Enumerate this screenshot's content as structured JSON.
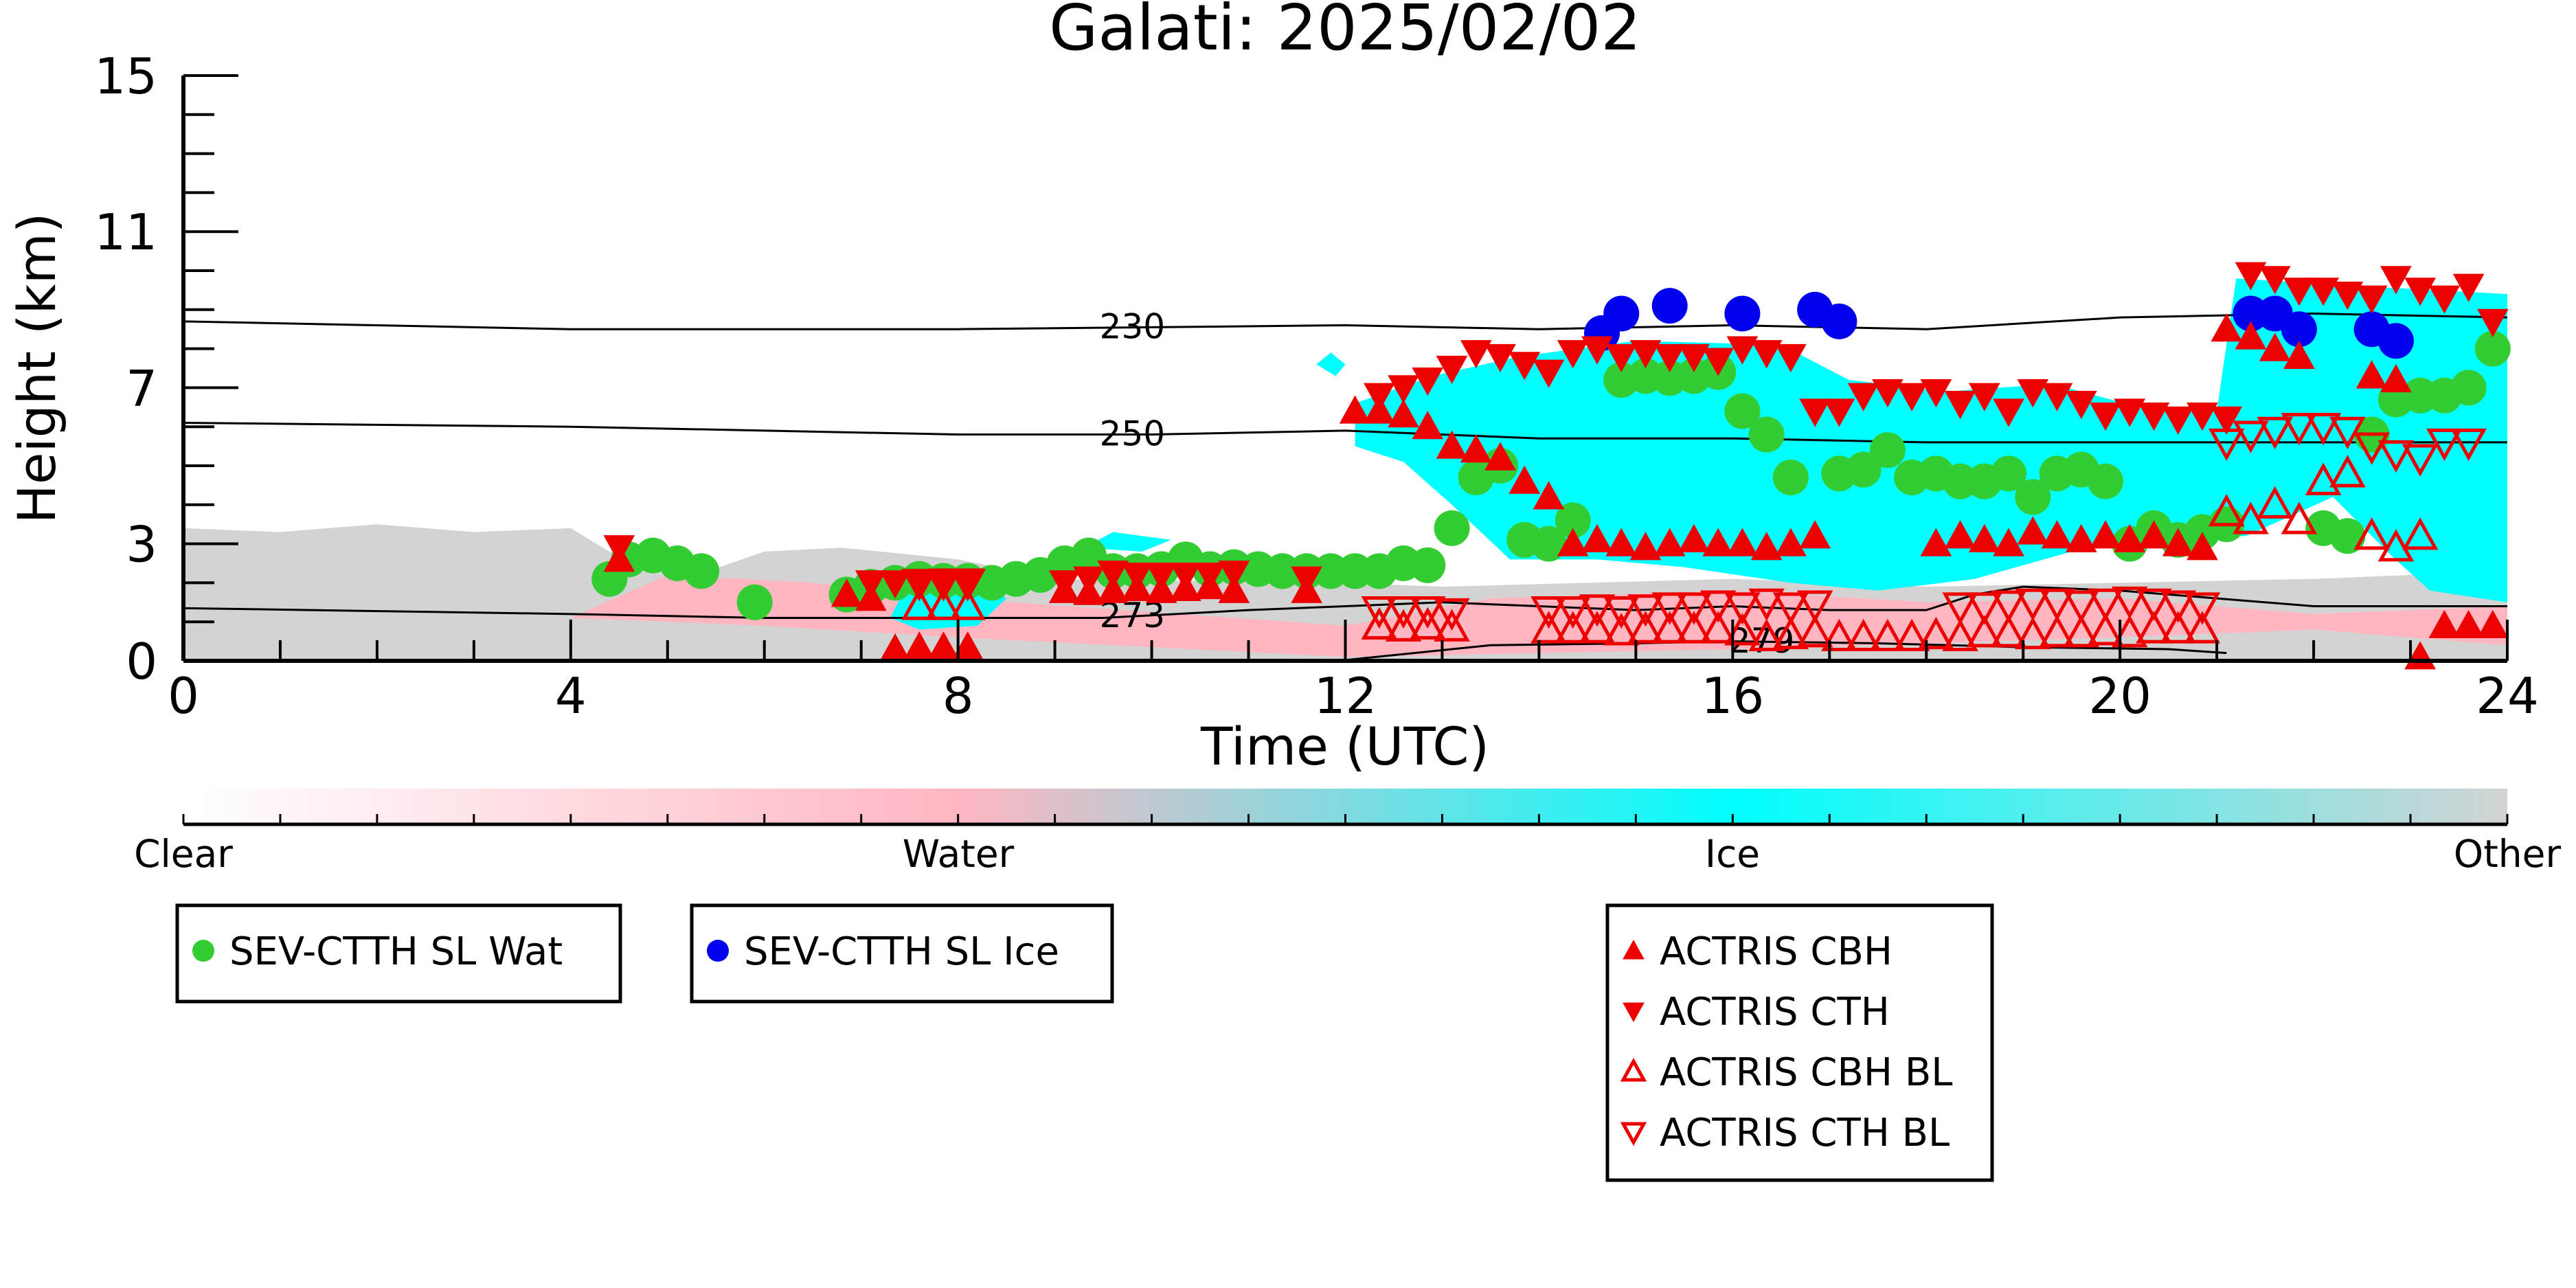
{
  "chart_data": {
    "type": "scatter",
    "title": "Galati: 2025/02/02",
    "xlabel": "Time (UTC)",
    "ylabel": "Height (km)",
    "xlim": [
      0,
      24
    ],
    "ylim": [
      0,
      15
    ],
    "xticks": [
      "0",
      "4",
      "8",
      "12",
      "16",
      "20",
      "24"
    ],
    "yticks": [
      "0",
      "3",
      "7",
      "11",
      "15"
    ],
    "grid": false,
    "colorbar": {
      "labels": [
        "Clear",
        "Water",
        "Ice",
        "Other"
      ],
      "colors": [
        "#ffffff",
        "#ffb6c1",
        "#00ffff",
        "#d3d3d3"
      ]
    },
    "contours": [
      {
        "label": "230",
        "color": "#000000",
        "x": [
          0,
          4,
          8,
          12,
          14,
          16,
          18,
          20,
          22,
          24
        ],
        "y": [
          8.7,
          8.5,
          8.5,
          8.6,
          8.5,
          8.6,
          8.5,
          8.8,
          8.9,
          8.8
        ]
      },
      {
        "label": "250",
        "color": "#000000",
        "x": [
          0,
          4,
          8,
          10,
          12,
          14,
          16,
          18,
          20,
          22,
          24
        ],
        "y": [
          6.1,
          6.0,
          5.8,
          5.8,
          5.9,
          5.7,
          5.7,
          5.6,
          5.6,
          5.6,
          5.6
        ]
      },
      {
        "label": "273",
        "color": "#000000",
        "x": [
          0,
          4,
          6,
          8,
          9.5,
          11,
          12,
          13,
          14,
          15,
          16,
          17,
          18,
          18.5,
          19,
          20,
          21,
          22,
          24
        ],
        "y": [
          1.35,
          1.2,
          1.1,
          1.1,
          1.1,
          1.3,
          1.4,
          1.5,
          1.4,
          1.3,
          1.4,
          1.3,
          1.3,
          1.7,
          1.9,
          1.8,
          1.6,
          1.4,
          1.4
        ]
      },
      {
        "label": "279",
        "color": "#000000",
        "x": [
          12,
          13.5,
          15,
          16,
          17.5,
          19,
          20.5,
          21.1
        ],
        "y": [
          0.02,
          0.4,
          0.45,
          0.5,
          0.45,
          0.35,
          0.3,
          0.2
        ]
      }
    ],
    "series": [
      {
        "name": "SEV-CTTH SL Wat",
        "marker": "circle",
        "color": "#33cc33",
        "x": [
          4.4,
          4.6,
          4.85,
          5.1,
          5.35,
          5.9,
          6.85,
          7.1,
          7.35,
          7.6,
          7.85,
          8.1,
          8.35,
          8.6,
          8.85,
          9.1,
          9.35,
          9.6,
          9.85,
          10.1,
          10.35,
          10.6,
          10.85,
          11.1,
          11.35,
          11.6,
          11.85,
          12.1,
          12.35,
          12.6,
          12.85,
          13.1,
          13.35,
          13.6,
          13.85,
          14.1,
          14.35,
          14.85,
          15.1,
          15.35,
          15.6,
          15.85,
          16.1,
          16.35,
          16.6,
          17.1,
          17.35,
          17.6,
          17.85,
          18.1,
          18.35,
          18.6,
          18.85,
          19.1,
          19.35,
          19.6,
          19.85,
          20.1,
          20.35,
          20.6,
          20.85,
          21.1,
          22.1,
          22.35,
          22.6,
          22.85,
          23.1,
          23.35,
          23.6,
          23.85
        ],
        "y": [
          2.1,
          2.6,
          2.7,
          2.5,
          2.3,
          1.5,
          1.7,
          1.9,
          2.0,
          2.1,
          2.05,
          2.05,
          2.0,
          2.1,
          2.2,
          2.5,
          2.7,
          2.3,
          2.3,
          2.35,
          2.6,
          2.35,
          2.4,
          2.35,
          2.3,
          2.3,
          2.3,
          2.3,
          2.3,
          2.5,
          2.45,
          3.4,
          4.7,
          5.0,
          3.1,
          3.0,
          3.6,
          7.2,
          7.3,
          7.25,
          7.3,
          7.4,
          6.4,
          5.8,
          4.7,
          4.8,
          4.9,
          5.4,
          4.7,
          4.8,
          4.6,
          4.6,
          4.8,
          4.2,
          4.8,
          4.9,
          4.6,
          3.0,
          3.4,
          3.1,
          3.3,
          3.5,
          3.4,
          3.2,
          5.8,
          6.7,
          6.8,
          6.8,
          7.0,
          8.0
        ]
      },
      {
        "name": "SEV-CTTH SL Ice",
        "marker": "circle",
        "color": "#0000ee",
        "x": [
          14.65,
          14.85,
          15.35,
          16.1,
          16.85,
          17.1,
          21.35,
          21.6,
          21.85,
          22.6,
          22.85
        ],
        "y": [
          8.4,
          8.9,
          9.1,
          8.9,
          9.0,
          8.7,
          8.9,
          8.9,
          8.5,
          8.5,
          8.2
        ]
      },
      {
        "name": "ACTRIS CBH",
        "marker": "triangle-up",
        "color": "#ee0000",
        "x": [
          4.5,
          6.85,
          7.1,
          7.35,
          7.6,
          7.85,
          8.1,
          9.1,
          9.35,
          9.6,
          9.85,
          10.1,
          10.35,
          10.6,
          10.85,
          11.6,
          12.1,
          12.35,
          12.6,
          12.85,
          13.1,
          13.35,
          13.6,
          13.85,
          14.1,
          14.35,
          14.6,
          14.85,
          15.1,
          15.35,
          15.6,
          15.85,
          16.1,
          16.35,
          16.6,
          16.85,
          18.1,
          18.35,
          18.6,
          18.85,
          19.1,
          19.35,
          19.6,
          19.85,
          20.1,
          20.35,
          20.6,
          20.85,
          21.1,
          21.35,
          21.6,
          21.85,
          22.6,
          22.85,
          23.1,
          23.35,
          23.6,
          23.85
        ],
        "y": [
          2.6,
          1.7,
          1.6,
          0.3,
          0.35,
          0.35,
          0.35,
          1.8,
          1.75,
          1.8,
          1.85,
          1.8,
          1.85,
          1.9,
          1.8,
          1.8,
          6.4,
          6.4,
          6.3,
          6.0,
          5.5,
          5.4,
          5.2,
          4.6,
          4.2,
          3.0,
          3.1,
          3.0,
          2.9,
          3.0,
          3.1,
          3.0,
          3.0,
          2.9,
          3.0,
          3.2,
          3.0,
          3.2,
          3.1,
          3.0,
          3.3,
          3.2,
          3.1,
          3.2,
          3.1,
          3.2,
          3.0,
          2.9,
          8.5,
          8.3,
          8.0,
          7.8,
          7.3,
          7.2,
          0.1,
          0.9,
          0.9,
          0.9
        ]
      },
      {
        "name": "ACTRIS CTH",
        "marker": "triangle-down",
        "color": "#ee0000",
        "x": [
          4.5,
          7.1,
          7.35,
          7.6,
          7.85,
          8.1,
          9.1,
          9.35,
          9.6,
          9.85,
          10.1,
          10.35,
          10.6,
          10.85,
          11.6,
          12.35,
          12.6,
          12.85,
          13.1,
          13.35,
          13.6,
          13.85,
          14.1,
          14.35,
          14.6,
          14.85,
          15.1,
          15.35,
          15.6,
          15.85,
          16.1,
          16.35,
          16.6,
          16.85,
          17.1,
          17.35,
          17.6,
          17.85,
          18.1,
          18.35,
          18.6,
          18.85,
          19.1,
          19.35,
          19.6,
          19.85,
          20.1,
          20.35,
          20.6,
          20.85,
          21.1,
          21.35,
          21.6,
          21.85,
          22.1,
          22.35,
          22.6,
          22.85,
          23.1,
          23.35,
          23.6,
          23.85
        ],
        "y": [
          2.9,
          2.0,
          2.0,
          2.0,
          2.05,
          2.05,
          2.0,
          2.1,
          2.25,
          2.2,
          2.2,
          2.2,
          2.2,
          2.25,
          2.1,
          6.8,
          7.0,
          7.2,
          7.5,
          7.9,
          7.8,
          7.6,
          7.4,
          7.9,
          8.0,
          7.8,
          7.9,
          7.8,
          7.8,
          7.7,
          8.0,
          7.9,
          7.8,
          6.4,
          6.4,
          6.8,
          6.9,
          6.8,
          6.9,
          6.6,
          6.8,
          6.4,
          6.9,
          6.8,
          6.6,
          6.3,
          6.4,
          6.3,
          6.2,
          6.3,
          6.2,
          9.9,
          9.8,
          9.5,
          9.5,
          9.4,
          9.3,
          9.8,
          9.5,
          9.3,
          9.6,
          8.7
        ]
      },
      {
        "name": "ACTRIS CBH BL",
        "marker": "triangle-up-open",
        "color": "#ee0000",
        "x": [
          7.6,
          7.85,
          8.1,
          12.35,
          12.6,
          12.85,
          13.1,
          14.1,
          14.35,
          14.6,
          14.85,
          15.1,
          15.35,
          15.6,
          15.85,
          16.1,
          16.35,
          16.6,
          16.85,
          17.1,
          17.35,
          17.6,
          17.85,
          18.1,
          18.35,
          18.6,
          18.85,
          19.1,
          19.35,
          19.6,
          19.85,
          20.1,
          20.35,
          20.6,
          20.85,
          21.1,
          21.35,
          21.6,
          21.85,
          22.1,
          22.35,
          22.6,
          22.85,
          23.1
        ],
        "y": [
          1.4,
          1.4,
          1.4,
          0.9,
          0.85,
          0.9,
          0.85,
          0.8,
          0.8,
          0.8,
          0.75,
          0.8,
          0.8,
          0.8,
          0.8,
          0.75,
          0.6,
          0.65,
          0.7,
          0.6,
          0.6,
          0.6,
          0.6,
          0.65,
          0.6,
          0.7,
          0.7,
          0.65,
          0.7,
          0.7,
          0.75,
          0.7,
          0.8,
          0.8,
          0.8,
          3.8,
          3.6,
          4.0,
          3.6,
          4.6,
          4.8,
          3.2,
          2.9,
          3.2
        ]
      },
      {
        "name": "ACTRIS CTH BL",
        "marker": "triangle-down-open",
        "color": "#ee0000",
        "x": [
          7.6,
          7.85,
          8.1,
          12.35,
          12.6,
          12.85,
          13.1,
          14.1,
          14.35,
          14.6,
          14.85,
          15.1,
          15.35,
          15.6,
          15.85,
          16.1,
          16.35,
          16.6,
          16.85,
          18.35,
          18.6,
          18.85,
          19.1,
          19.35,
          19.6,
          19.85,
          20.1,
          20.35,
          20.6,
          20.85,
          21.1,
          21.35,
          21.6,
          21.85,
          22.1,
          22.35,
          22.6,
          22.85,
          23.1,
          23.35,
          23.6
        ],
        "y": [
          2.0,
          2.0,
          2.0,
          1.3,
          1.3,
          1.3,
          1.25,
          1.3,
          1.3,
          1.35,
          1.3,
          1.35,
          1.4,
          1.4,
          1.45,
          1.4,
          1.5,
          1.4,
          1.45,
          1.4,
          1.4,
          1.45,
          1.5,
          1.5,
          1.45,
          1.5,
          1.55,
          1.5,
          1.45,
          1.4,
          5.6,
          5.8,
          5.9,
          6.0,
          6.0,
          5.9,
          5.5,
          5.3,
          5.2,
          5.6,
          5.6
        ]
      }
    ],
    "legends": [
      {
        "entries": [
          "SEV-CTTH SL Wat"
        ]
      },
      {
        "entries": [
          "SEV-CTTH SL Ice"
        ]
      },
      {
        "entries": [
          "ACTRIS CBH",
          "ACTRIS CTH",
          "ACTRIS CBH BL",
          "ACTRIS CTH BL"
        ]
      }
    ]
  }
}
